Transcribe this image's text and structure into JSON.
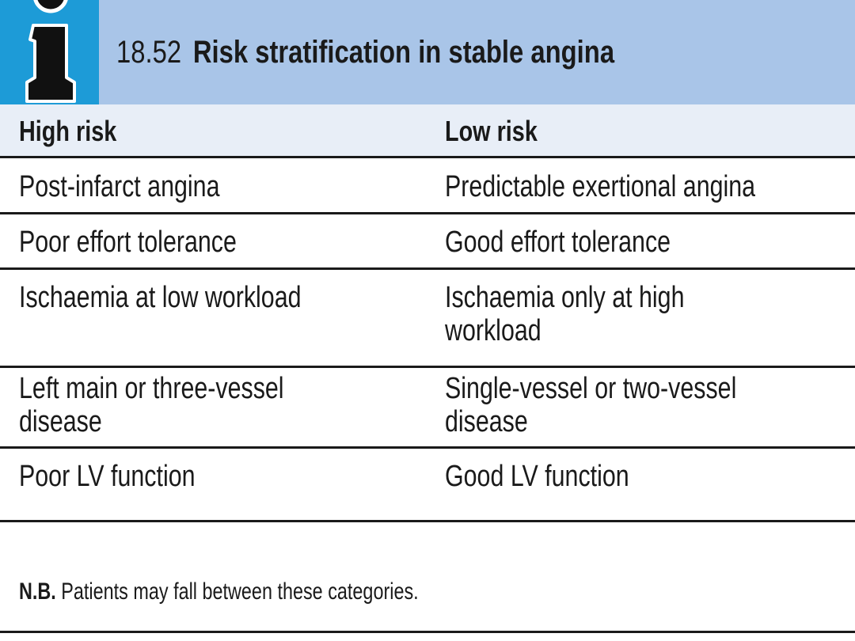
{
  "header": {
    "number": "18.52",
    "title": "Risk stratification in stable angina",
    "icon": "info-icon",
    "colors": {
      "header_bg": "#a9c5e8",
      "icon_bg": "#1d9bd7",
      "header_row_bg": "#e8eef7"
    }
  },
  "table": {
    "columns": [
      "High risk",
      "Low risk"
    ],
    "rows": [
      {
        "high": "Post-infarct angina",
        "low": "Predictable exertional angina"
      },
      {
        "high": "Poor effort tolerance",
        "low": "Good effort tolerance"
      },
      {
        "high": "Ischaemia at low workload",
        "low_line1": "Ischaemia only at high",
        "low_line2": "workload"
      },
      {
        "high_line1": "Left main or three-vessel",
        "high_line2": "disease",
        "low_line1": "Single-vessel or two-vessel",
        "low_line2": "disease"
      },
      {
        "high": "Poor LV function",
        "low": "Good LV function"
      }
    ]
  },
  "note": {
    "label": "N.B.",
    "text": "Patients may fall between these categories."
  }
}
